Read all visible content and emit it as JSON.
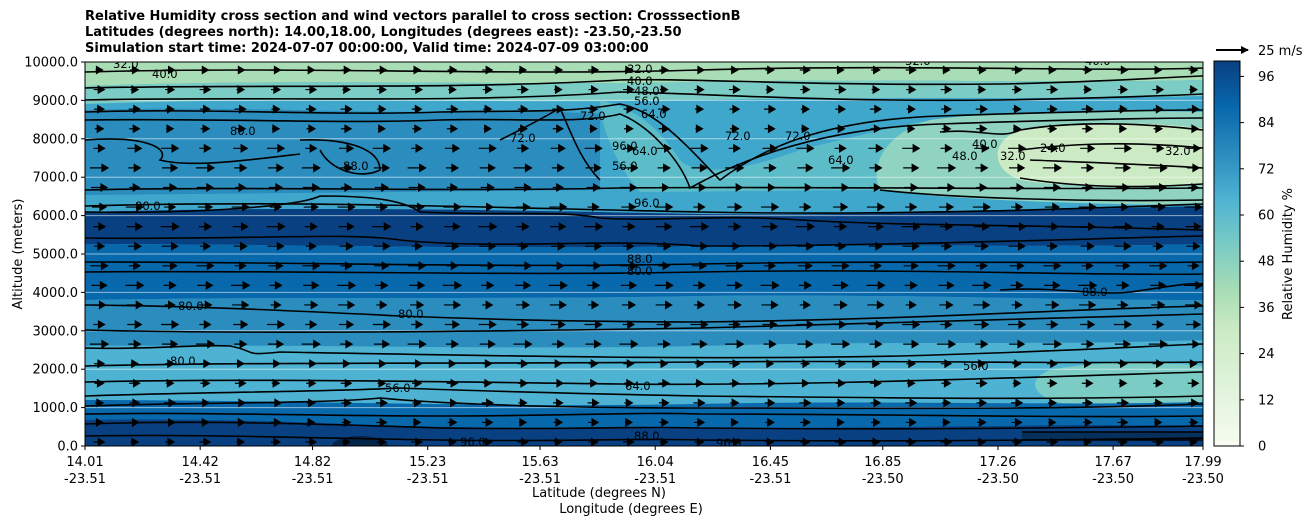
{
  "chart_data": {
    "type": "contourf",
    "title_lines": [
      "Relative Humidity cross section and wind vectors parallel to cross section: CrosssectionB",
      "Latitudes (degrees north): 14.00,18.00, Longitudes (degrees east): -23.50,-23.50",
      "Simulation start time: 2024-07-07 00:00:00, Valid time: 2024-07-09 03:00:00"
    ],
    "ylabel": "Altitude (meters)",
    "xlabel": "Latitude (degrees N)",
    "xlabel2": "Longitude (degrees E)",
    "ylim": [
      0,
      10000
    ],
    "yticks": [
      "0.0",
      "1000.0",
      "2000.0",
      "3000.0",
      "4000.0",
      "5000.0",
      "6000.0",
      "7000.0",
      "8000.0",
      "9000.0",
      "10000.0"
    ],
    "xticks": [
      {
        "lat": "14.01",
        "lon": "-23.51"
      },
      {
        "lat": "14.42",
        "lon": "-23.51"
      },
      {
        "lat": "14.82",
        "lon": "-23.51"
      },
      {
        "lat": "15.23",
        "lon": "-23.51"
      },
      {
        "lat": "15.63",
        "lon": "-23.51"
      },
      {
        "lat": "16.04",
        "lon": "-23.51"
      },
      {
        "lat": "16.45",
        "lon": "-23.51"
      },
      {
        "lat": "16.85",
        "lon": "-23.50"
      },
      {
        "lat": "17.26",
        "lon": "-23.50"
      },
      {
        "lat": "17.67",
        "lon": "-23.50"
      },
      {
        "lat": "17.99",
        "lon": "-23.50"
      }
    ],
    "grid": "horizontal",
    "colorbar": {
      "label": "Relative Humidity %",
      "range": [
        0,
        100
      ],
      "ticks": [
        "0",
        "12",
        "24",
        "36",
        "48",
        "60",
        "72",
        "84",
        "96"
      ],
      "colormap": "GnBu",
      "levels": 25
    },
    "quiver_key": {
      "label": "25 m/s",
      "value": 25
    },
    "contour_labels": [
      "32.0",
      "40.0",
      "32.0",
      "40.0",
      "48.0",
      "56.0",
      "64.0",
      "72.0",
      "80.0",
      "96.0",
      "88.0",
      "80.0",
      "72.0",
      "64.0",
      "56.0",
      "72.0",
      "64.0",
      "72.0",
      "96.0",
      "88.0",
      "80.0",
      "80.0",
      "80.0",
      "80.0",
      "56.0",
      "56.0",
      "64.0",
      "88.0",
      "96.0",
      "96.0",
      "88.0",
      "48.0",
      "40.0",
      "32.0",
      "24.0",
      "32.0",
      "40.0",
      "32.0"
    ]
  }
}
